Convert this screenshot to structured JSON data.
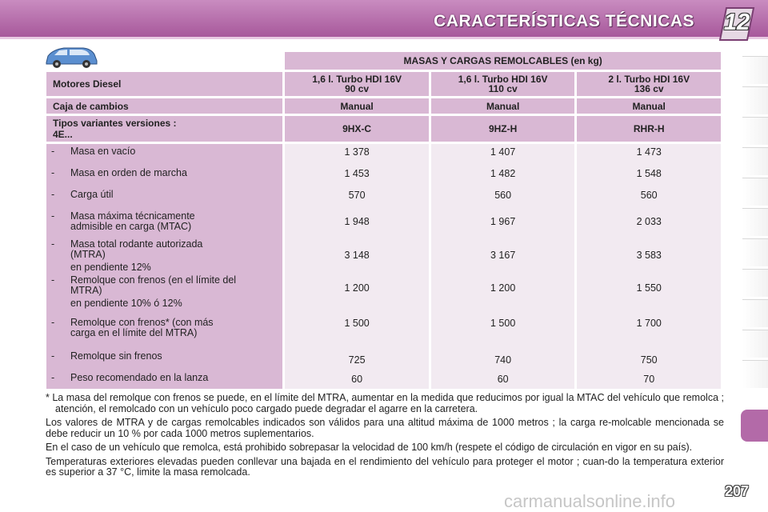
{
  "header": {
    "title": "CARACTERÍSTICAS TÉCNICAS",
    "chapter": "12"
  },
  "table": {
    "title": "MASAS Y CARGAS REMOLCABLES (en kg)",
    "engines_label": "Motores Diesel",
    "engines": [
      [
        "1,6 l. Turbo HDI 16V",
        "90 cv"
      ],
      [
        "1,6 l. Turbo HDI 16V",
        "110 cv"
      ],
      [
        "2 l. Turbo HDI 16V",
        "136 cv"
      ]
    ],
    "gearbox_label": "Caja de cambios",
    "gearbox": [
      "Manual",
      "Manual",
      "Manual"
    ],
    "variants_label": [
      "Tipos variantes versiones :",
      "4E..."
    ],
    "variants": [
      "9HX-C",
      "9HZ-H",
      "RHR-H"
    ],
    "rows": [
      {
        "lines": [
          "Masa en vacío"
        ],
        "values": [
          "1 378",
          "1 407",
          "1 473"
        ]
      },
      {
        "lines": [
          "Masa en orden de marcha"
        ],
        "values": [
          "1 453",
          "1 482",
          "1 548"
        ]
      },
      {
        "lines": [
          "Carga útil"
        ],
        "values": [
          "570",
          "560",
          "560"
        ]
      },
      {
        "lines": [
          "Masa máxima técnicamente",
          "admisible en carga (MTAC)"
        ],
        "values": [
          "1 948",
          "1 967",
          "2 033"
        ]
      },
      {
        "lines": [
          "Masa total rodante autorizada",
          "(MTRA)"
        ],
        "sub": "en pendiente 12%",
        "values": [
          "3 148",
          "3 167",
          "3 583"
        ]
      },
      {
        "lines": [
          "Remolque con frenos (en el límite del",
          "MTRA)"
        ],
        "sub": "en pendiente 10% ó 12%",
        "values": [
          "1 200",
          "1 200",
          "1 550"
        ]
      },
      {
        "lines": [
          "Remolque con frenos* (con más",
          "carga en el límite del MTRA)"
        ],
        "values": [
          "1 500",
          "1 500",
          "1 700"
        ]
      },
      {
        "lines": [
          "Remolque sin frenos"
        ],
        "values": [
          "725",
          "740",
          "750"
        ]
      },
      {
        "lines": [
          "Peso recomendado en la lanza"
        ],
        "values": [
          "60",
          "60",
          "70"
        ]
      }
    ]
  },
  "notes": [
    "* La masa del remolque con frenos se puede, en el límite del MTRA, aumentar en la medida que reducimos por igual la MTAC del vehículo que remolca ; atención, el remolcado con un vehículo poco cargado puede degradar el agarre en la carretera.",
    "Los valores de MTRA y de cargas remolcables indicados son válidos para una altitud máxima de 1000 metros ; la carga re-molcable mencionada se debe reducir un 10 % por cada 1000 metros suplementarios.",
    "En el caso de un vehículo que remolca, está prohibido sobrepasar la velocidad de 100 km/h (respete el código de circulación en vigor en su país).",
    "Temperaturas exteriores elevadas pueden conllevar una bajada en el rendimiento del vehículo para proteger el motor ; cuan-do la temperatura exterior es superior a 37 °C, limite la masa remolcada."
  ],
  "page_number": "207",
  "watermark": "carmanualsonline.info",
  "colors": {
    "header": "#b36aa8",
    "label_cell": "#d9b8d4",
    "value_cell": "#f2eaf1"
  }
}
